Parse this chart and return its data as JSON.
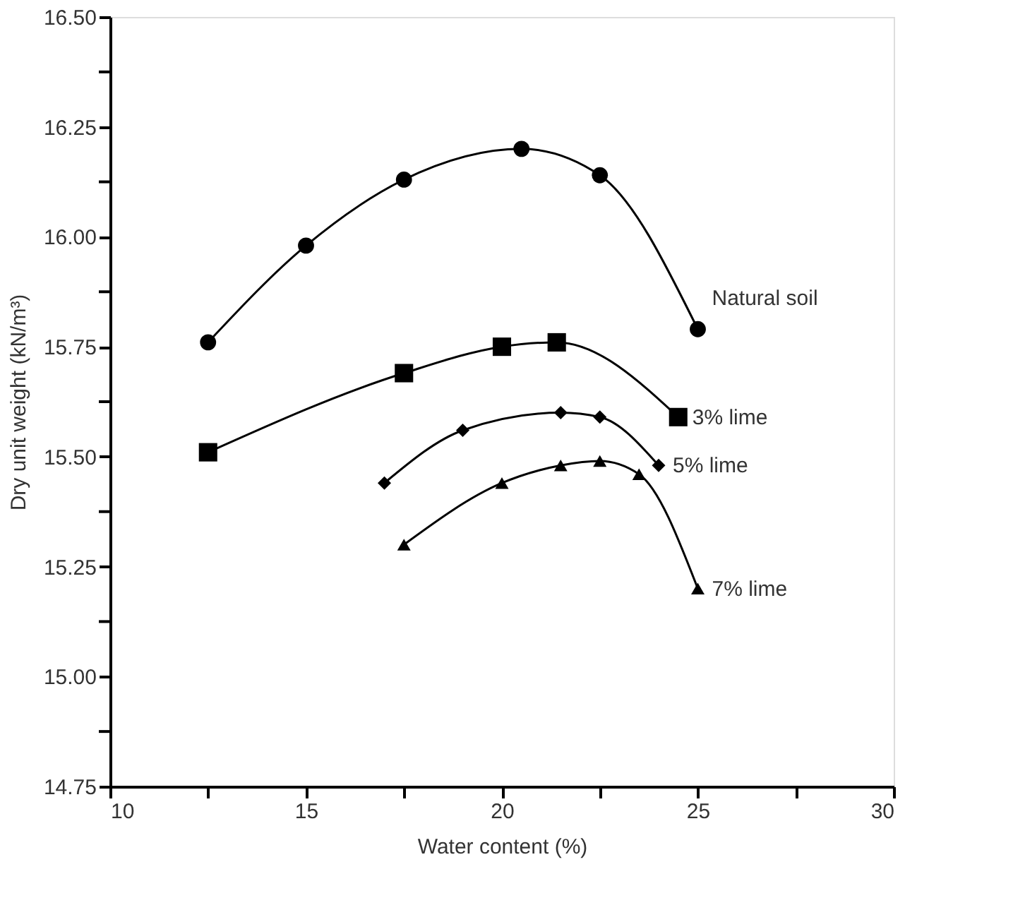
{
  "chart_data": {
    "type": "line",
    "xlabel": "Water content (%)",
    "ylabel": "Dry unit weight (kN/m³)",
    "xlim": [
      10,
      30
    ],
    "ylim": [
      14.75,
      16.5
    ],
    "xticks": [
      10,
      {
        "value": 12.5,
        "label": null
      },
      15,
      {
        "value": 17.5,
        "label": null
      },
      20,
      {
        "value": 22.5,
        "label": null
      },
      25,
      {
        "value": 27.5,
        "label": null
      },
      30
    ],
    "yticks": [
      {
        "value": 14.75,
        "label": "14.75"
      },
      {
        "value": 14.875,
        "label": null
      },
      {
        "value": 15,
        "label": "15.00"
      },
      {
        "value": 15.125,
        "label": null
      },
      {
        "value": 15.25,
        "label": "15.25"
      },
      {
        "value": 15.375,
        "label": null
      },
      {
        "value": 15.5,
        "label": "15.50"
      },
      {
        "value": 15.625,
        "label": null
      },
      {
        "value": 15.75,
        "label": "15.75"
      },
      {
        "value": 15.875,
        "label": null
      },
      {
        "value": 16,
        "label": "16.00"
      },
      {
        "value": 16.125,
        "label": null
      },
      {
        "value": 16.25,
        "label": "16.25"
      },
      {
        "value": 16.375,
        "label": null
      },
      {
        "value": 16.5,
        "label": "16.50"
      }
    ],
    "line_style": "solid",
    "series": [
      {
        "name": "Natural soil",
        "color": "#000000",
        "marker": "circle",
        "x": [
          12.5,
          15,
          17.5,
          20.5,
          22.5,
          25
        ],
        "values": [
          15.76,
          15.98,
          16.13,
          16.2,
          16.14,
          15.79
        ]
      },
      {
        "name": "3% lime",
        "color": "#000000",
        "marker": "square",
        "x": [
          12.5,
          17.5,
          20,
          21.4,
          24.5
        ],
        "values": [
          15.51,
          15.69,
          15.75,
          15.76,
          15.59
        ]
      },
      {
        "name": "5% lime",
        "color": "#000000",
        "marker": "diamond",
        "x": [
          17,
          19,
          21.5,
          22.5,
          24
        ],
        "values": [
          15.44,
          15.56,
          15.6,
          15.59,
          15.48
        ]
      },
      {
        "name": "7% lime",
        "color": "#000000",
        "marker": "triangle",
        "x": [
          17.5,
          20,
          21.5,
          22.5,
          23.5,
          25
        ],
        "values": [
          15.3,
          15.44,
          15.48,
          15.49,
          15.46,
          15.2
        ]
      }
    ]
  }
}
